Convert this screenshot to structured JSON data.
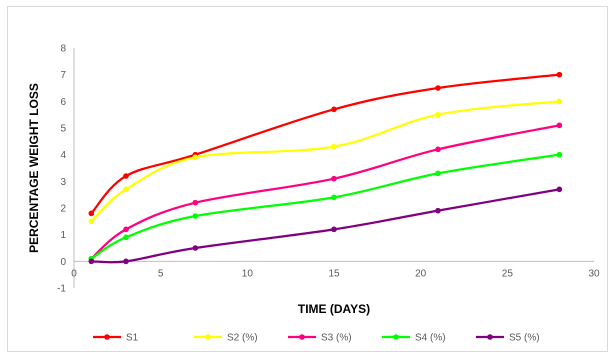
{
  "chart_data": {
    "type": "line",
    "title": "",
    "xlabel": "TIME (DAYS)",
    "ylabel": "PERCENTAGE WEIGHT LOSS",
    "xlim": [
      0,
      30
    ],
    "ylim": [
      -1,
      8
    ],
    "x_ticks": [
      0,
      5,
      10,
      15,
      20,
      25,
      30
    ],
    "y_ticks": [
      -1,
      0,
      1,
      2,
      3,
      4,
      5,
      6,
      7,
      8
    ],
    "grid": false,
    "smooth": true,
    "legend_position": "bottom",
    "series": [
      {
        "name": "S1",
        "color": "#ff0000",
        "x": [
          1,
          3,
          7,
          15,
          21,
          28
        ],
        "y": [
          1.8,
          3.2,
          4.0,
          5.7,
          6.5,
          7.0
        ]
      },
      {
        "name": "S2 (%)",
        "color": "#ffff00",
        "x": [
          1,
          3,
          7,
          15,
          21,
          28
        ],
        "y": [
          1.5,
          2.7,
          3.9,
          4.3,
          5.5,
          6.0
        ]
      },
      {
        "name": "S3 (%)",
        "color": "#ff0080",
        "x": [
          1,
          3,
          7,
          15,
          21,
          28
        ],
        "y": [
          0.1,
          1.2,
          2.2,
          3.1,
          4.2,
          5.1
        ]
      },
      {
        "name": "S4 (%)",
        "color": "#00ff00",
        "x": [
          1,
          3,
          7,
          15,
          21,
          28
        ],
        "y": [
          0.1,
          0.9,
          1.7,
          2.4,
          3.3,
          4.0
        ]
      },
      {
        "name": "S5 (%)",
        "color": "#800080",
        "x": [
          1,
          3,
          7,
          15,
          21,
          28
        ],
        "y": [
          0.0,
          0.0,
          0.5,
          1.2,
          1.9,
          2.7
        ]
      }
    ]
  }
}
